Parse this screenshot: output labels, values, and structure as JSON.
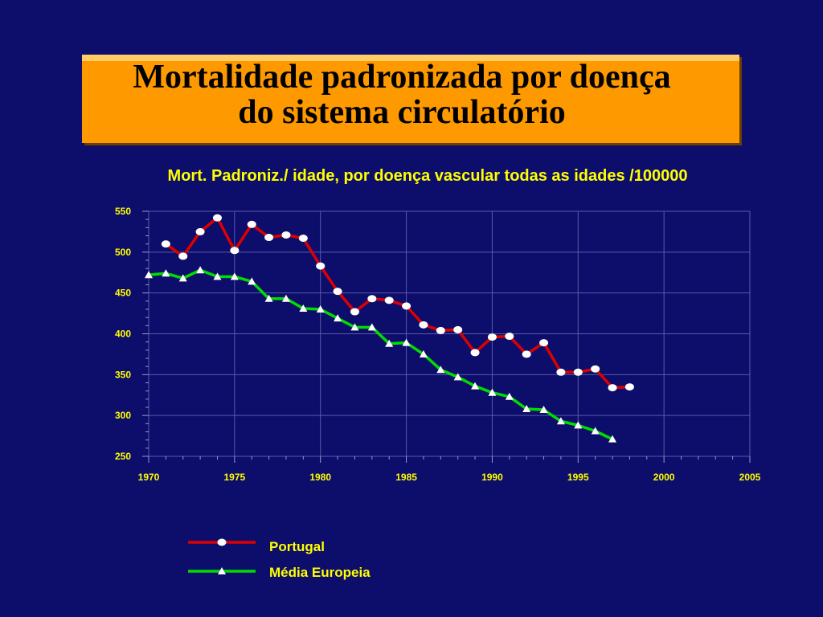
{
  "title": {
    "line1": "Mortalidade padronizada por doença",
    "line2": "do sistema circulatório"
  },
  "chart_data": {
    "type": "line",
    "title": "Mort. Padroniz./ idade, por doença vascular todas as idades /100000",
    "xlim": [
      1970,
      2005
    ],
    "ylim": [
      250,
      550
    ],
    "x_ticks": [
      1970,
      1975,
      1980,
      1985,
      1990,
      1995,
      2000,
      2005
    ],
    "y_ticks": [
      250,
      300,
      350,
      400,
      450,
      500,
      550
    ],
    "grid": true,
    "legend_position": "bottom",
    "series": [
      {
        "name": "Portugal",
        "color": "#dd0000",
        "marker": "circle",
        "x": [
          1971,
          1972,
          1973,
          1974,
          1975,
          1976,
          1977,
          1978,
          1979,
          1980,
          1981,
          1982,
          1983,
          1984,
          1985,
          1986,
          1987,
          1988,
          1989,
          1990,
          1991,
          1992,
          1993,
          1994,
          1995,
          1996,
          1997,
          1998
        ],
        "y": [
          510,
          495,
          525,
          542,
          502,
          534,
          518,
          521,
          517,
          483,
          452,
          427,
          443,
          441,
          434,
          411,
          404,
          405,
          377,
          396,
          397,
          375,
          389,
          353,
          353,
          357,
          334,
          335
        ]
      },
      {
        "name": "Média Europeia",
        "color": "#00dd00",
        "marker": "triangle",
        "x": [
          1970,
          1971,
          1972,
          1973,
          1974,
          1975,
          1976,
          1977,
          1978,
          1979,
          1980,
          1981,
          1982,
          1983,
          1984,
          1985,
          1986,
          1987,
          1988,
          1989,
          1990,
          1991,
          1992,
          1993,
          1994,
          1995,
          1996,
          1997
        ],
        "y": [
          472,
          474,
          468,
          478,
          470,
          470,
          464,
          443,
          443,
          431,
          430,
          419,
          408,
          408,
          388,
          389,
          375,
          356,
          347,
          336,
          328,
          323,
          308,
          307,
          293,
          288,
          281,
          271
        ]
      }
    ]
  }
}
